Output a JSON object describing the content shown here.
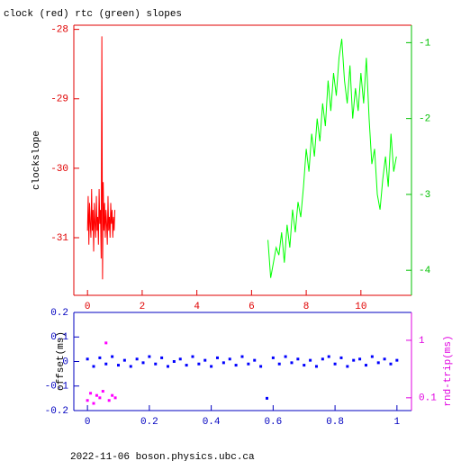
{
  "chart_data": [
    {
      "type": "line",
      "title": "clock (red) rtc (green) slopes",
      "ylabel": "clockslope",
      "xlim": [
        -0.5,
        11.85
      ],
      "xticks": [
        0,
        2,
        4,
        6,
        8,
        10
      ],
      "ylim": [
        -31.83,
        -27.94
      ],
      "yticks": [
        -28,
        -29,
        -30,
        -31
      ],
      "y2lim": [
        -4.33,
        -0.77
      ],
      "y2ticks": [
        -1,
        -2,
        -3,
        -4
      ],
      "xcolor": "#e00000",
      "ycolor": "#e00000",
      "y2color": "#00c000",
      "series": [
        {
          "color": "#ff0000",
          "x": [
            0,
            0.025,
            0.05,
            0.075,
            0.1,
            0.125,
            0.15,
            0.175,
            0.2,
            0.225,
            0.25,
            0.275,
            0.3,
            0.325,
            0.35,
            0.375,
            0.4,
            0.425,
            0.45,
            0.475,
            0.5,
            0.525,
            0.55,
            0.575,
            0.6,
            0.625,
            0.65,
            0.675,
            0.7,
            0.725,
            0.75,
            0.775,
            0.8,
            0.825,
            0.85,
            0.875,
            0.9,
            0.925,
            0.95,
            0.975,
            1.0
          ],
          "values": [
            -30.9,
            -30.4,
            -31.1,
            -30.5,
            -30.8,
            -31.0,
            -30.3,
            -30.9,
            -30.6,
            -31.2,
            -30.5,
            -30.8,
            -31.0,
            -30.4,
            -30.9,
            -30.7,
            -31.1,
            -30.3,
            -30.8,
            -30.6,
            -31.3,
            -28.1,
            -31.6,
            -30.2,
            -30.9,
            -30.5,
            -31.0,
            -30.6,
            -30.8,
            -31.1,
            -30.4,
            -30.9,
            -30.7,
            -31.0,
            -30.5,
            -30.8,
            -30.6,
            -31.0,
            -30.7,
            -30.9,
            -30.6
          ]
        },
        {
          "color": "#00ff00",
          "axis": "y2",
          "x": [
            6.6,
            6.7,
            6.8,
            6.9,
            7.0,
            7.1,
            7.2,
            7.3,
            7.4,
            7.5,
            7.6,
            7.7,
            7.8,
            7.9,
            8.0,
            8.1,
            8.2,
            8.3,
            8.4,
            8.5,
            8.6,
            8.7,
            8.8,
            8.9,
            9.0,
            9.1,
            9.2,
            9.3,
            9.4,
            9.5,
            9.6,
            9.7,
            9.8,
            9.9,
            10.0,
            10.1,
            10.2,
            10.3,
            10.4,
            10.5,
            10.6,
            10.7,
            10.8,
            10.9,
            11.0,
            11.1,
            11.2,
            11.3
          ],
          "values": [
            -3.6,
            -4.1,
            -3.9,
            -3.7,
            -3.8,
            -3.5,
            -3.9,
            -3.4,
            -3.7,
            -3.2,
            -3.5,
            -3.1,
            -3.3,
            -2.9,
            -2.4,
            -2.7,
            -2.2,
            -2.5,
            -2.0,
            -2.3,
            -1.8,
            -2.1,
            -1.5,
            -1.9,
            -1.4,
            -1.7,
            -1.2,
            -0.95,
            -1.5,
            -1.8,
            -1.3,
            -2.0,
            -1.6,
            -1.9,
            -1.4,
            -1.8,
            -1.2,
            -2.0,
            -2.6,
            -2.4,
            -3.0,
            -3.2,
            -2.8,
            -2.5,
            -2.9,
            -2.2,
            -2.7,
            -2.5
          ]
        }
      ]
    },
    {
      "type": "scatter",
      "ylabel": "offset(ms)",
      "y2label": "rnd-trip(ms)",
      "xlim": [
        -0.044,
        1.047
      ],
      "xticks": [
        0,
        0.2,
        0.4,
        0.6,
        0.8,
        1
      ],
      "ylim": [
        -0.2,
        0.2
      ],
      "yticks": [
        0.2,
        0.1,
        0,
        -0.1,
        -0.2
      ],
      "y2lim": [
        0.06,
        3.05
      ],
      "y2ticks": [
        1,
        0.1
      ],
      "y2log": true,
      "xcolor": "#0000c0",
      "ycolor": "#0000c0",
      "y2color": "#e000e0",
      "series": [
        {
          "color": "#0000ff",
          "x": [
            0,
            0.02,
            0.04,
            0.06,
            0.08,
            0.1,
            0.12,
            0.14,
            0.16,
            0.18,
            0.2,
            0.22,
            0.24,
            0.26,
            0.28,
            0.3,
            0.32,
            0.34,
            0.36,
            0.38,
            0.4,
            0.42,
            0.44,
            0.46,
            0.48,
            0.5,
            0.52,
            0.54,
            0.56,
            0.58,
            0.6,
            0.62,
            0.64,
            0.66,
            0.68,
            0.7,
            0.72,
            0.74,
            0.76,
            0.78,
            0.8,
            0.82,
            0.84,
            0.86,
            0.88,
            0.9,
            0.92,
            0.94,
            0.96,
            0.98,
            1.0
          ],
          "values": [
            0.01,
            -0.02,
            0.015,
            -0.01,
            0.02,
            -0.015,
            0.005,
            -0.02,
            0.01,
            -0.005,
            0.02,
            -0.01,
            0.015,
            -0.02,
            0.0,
            0.01,
            -0.015,
            0.02,
            -0.01,
            0.005,
            -0.02,
            0.015,
            -0.005,
            0.01,
            -0.015,
            0.02,
            -0.01,
            0.005,
            -0.02,
            -0.15,
            0.015,
            -0.01,
            0.02,
            -0.005,
            0.01,
            -0.015,
            0.005,
            -0.02,
            0.01,
            0.02,
            -0.01,
            0.015,
            -0.02,
            0.005,
            0.01,
            -0.015,
            0.02,
            -0.005,
            0.01,
            -0.01,
            0.005
          ]
        },
        {
          "color": "#ff00ff",
          "axis": "y2",
          "x": [
            0,
            0.01,
            0.02,
            0.03,
            0.04,
            0.05,
            0.06,
            0.07,
            0.08,
            0.09
          ],
          "values": [
            0.09,
            0.12,
            0.08,
            0.11,
            0.1,
            0.13,
            0.9,
            0.09,
            0.11,
            0.1
          ]
        }
      ]
    }
  ],
  "footer": "2022-11-06 boson.physics.ubc.ca"
}
